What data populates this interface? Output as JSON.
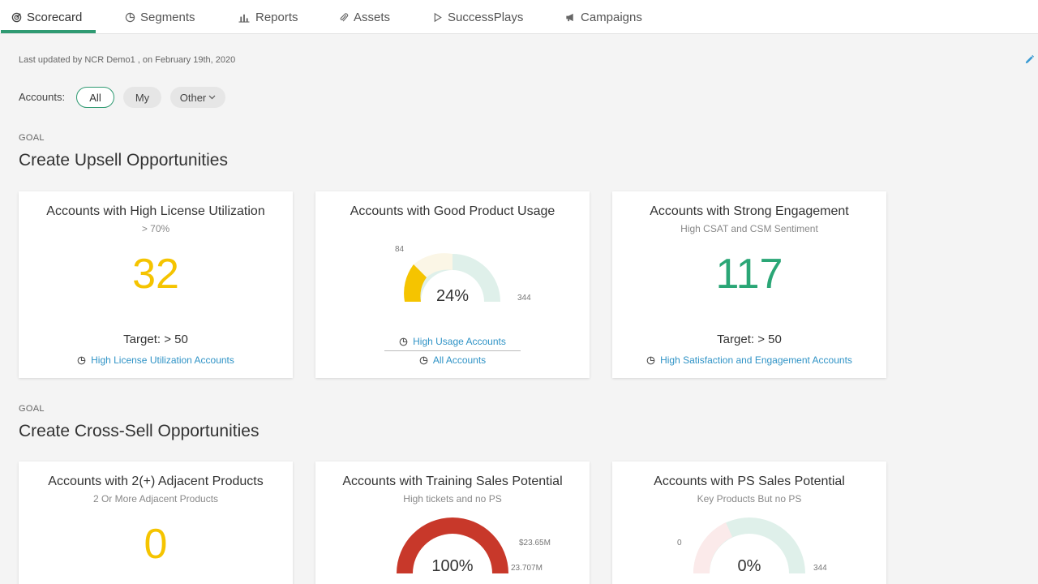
{
  "nav": {
    "tabs": [
      {
        "label": "Scorecard",
        "icon": "scorecard-icon"
      },
      {
        "label": "Segments",
        "icon": "pie-chart-icon"
      },
      {
        "label": "Reports",
        "icon": "bar-chart-icon"
      },
      {
        "label": "Assets",
        "icon": "paperclip-icon"
      },
      {
        "label": "SuccessPlays",
        "icon": "play-icon"
      },
      {
        "label": "Campaigns",
        "icon": "megaphone-icon"
      }
    ],
    "active_index": 0
  },
  "updated_text": "Last updated by NCR Demo1 , on February 19th, 2020",
  "filter": {
    "label": "Accounts:",
    "options": [
      "All",
      "My",
      "Other"
    ],
    "selected": "All"
  },
  "goals": [
    {
      "label": "GOAL",
      "title": "Create Upsell Opportunities",
      "cards": [
        {
          "title": "Accounts with High License Utilization",
          "subtitle": "> 70%",
          "value": "32",
          "target": "Target: > 50",
          "link": "High License Utilization Accounts"
        },
        {
          "title": "Accounts with Good Product Usage",
          "gauge": {
            "percent_label": "24%",
            "min_label": "84",
            "max_label": "344",
            "fraction": 0.24
          },
          "links": [
            "High Usage Accounts",
            "All Accounts"
          ]
        },
        {
          "title": "Accounts with Strong Engagement",
          "subtitle": "High CSAT and CSM Sentiment",
          "value": "117",
          "target": "Target: > 50",
          "link": "High Satisfaction and Engagement Accounts"
        }
      ]
    },
    {
      "label": "GOAL",
      "title": "Create Cross-Sell Opportunities",
      "cards": [
        {
          "title": "Accounts with 2(+) Adjacent Products",
          "subtitle": "2 Or More Adjacent Products",
          "value": "0"
        },
        {
          "title": "Accounts with Training Sales Potential",
          "subtitle": "High tickets and no PS",
          "gauge": {
            "percent_label": "100%",
            "top_label": "$23.65M",
            "max_label": "23.707M",
            "fraction": 1.0
          }
        },
        {
          "title": "Accounts with PS Sales Potential",
          "subtitle": "Key Products But no PS",
          "gauge": {
            "percent_label": "0%",
            "min_label": "0",
            "max_label": "344",
            "fraction": 0.0
          }
        }
      ]
    }
  ],
  "colors": {
    "accent": "#2f9a72",
    "yellow": "#f5c400",
    "green": "#2aa676",
    "red": "#c8382a",
    "link": "#2f93c6"
  }
}
